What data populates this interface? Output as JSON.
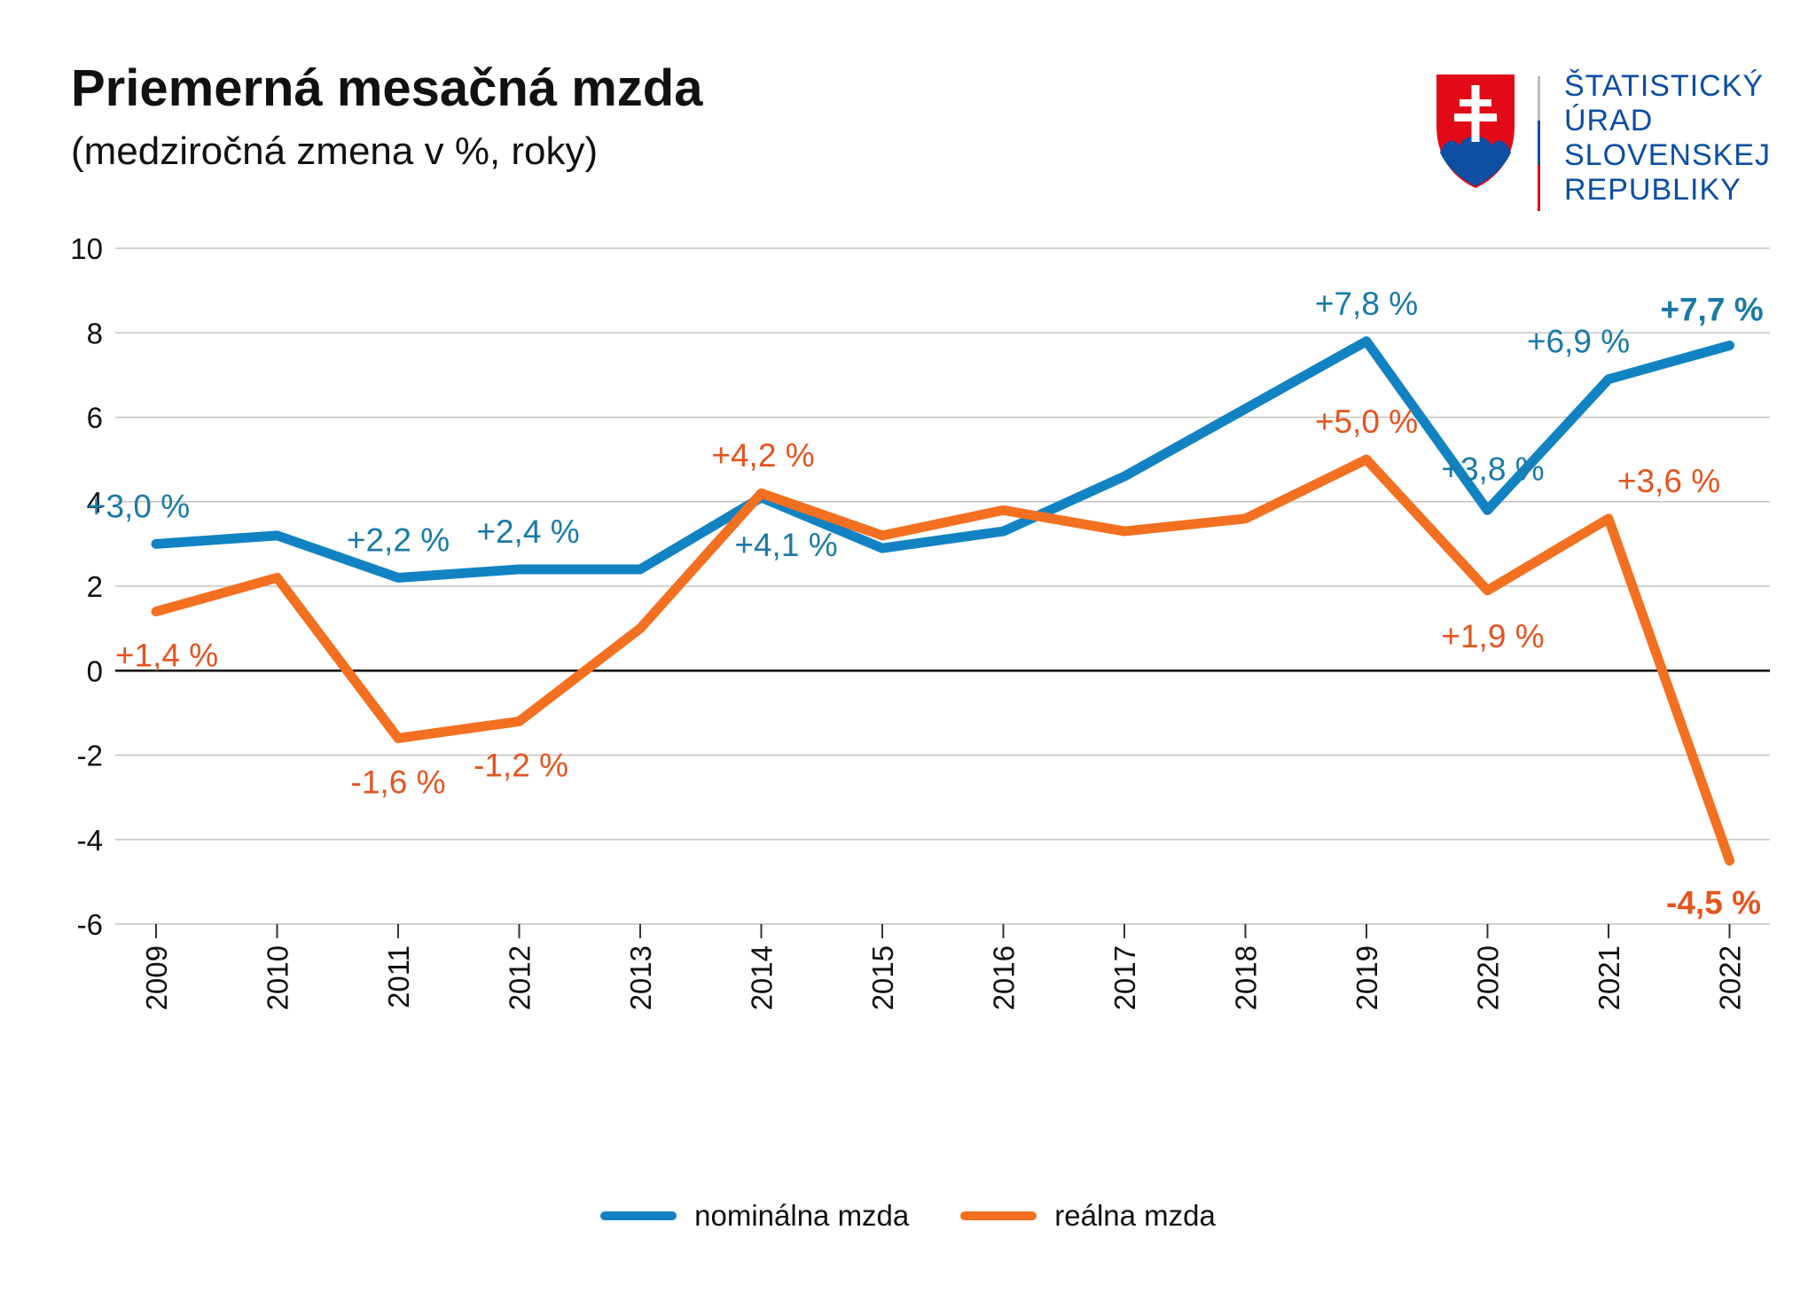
{
  "title": "Priemerná mesačná mzda",
  "subtitle": "(medziročná zmena v %, roky)",
  "logo": {
    "lines": [
      "ŠTATISTICKÝ",
      "ÚRAD",
      "SLOVENSKEJ",
      "REPUBLIKY"
    ],
    "text_color": "#0b4ea2"
  },
  "chart_data": {
    "type": "line",
    "x": [
      "2009",
      "2010",
      "2011",
      "2012",
      "2013",
      "2014",
      "2015",
      "2016",
      "2017",
      "2018",
      "2019",
      "2020",
      "2021",
      "2022"
    ],
    "ylim": [
      -6,
      10
    ],
    "yticks": [
      "10",
      "8",
      "6",
      "4",
      "2",
      "0",
      "-2",
      "-4",
      "-6"
    ],
    "grid": true,
    "legend_position": "bottom",
    "series": [
      {
        "name": "nominálna mzda",
        "color": "#1283c2",
        "label_color": "#1a7aa8",
        "values": [
          3.0,
          3.2,
          2.2,
          2.4,
          2.4,
          4.1,
          2.9,
          3.3,
          4.6,
          6.2,
          7.8,
          3.8,
          6.9,
          7.7
        ],
        "labels": [
          "+3,0 %",
          "",
          "+2,2 %",
          "+2,4 %",
          "",
          "+4,1 %",
          "",
          "",
          "",
          "",
          "+7,8 %",
          "+3,8 %",
          "+6,9 %",
          "+7,7 %"
        ]
      },
      {
        "name": "reálna mzda",
        "color": "#f37021",
        "label_color": "#e5541e",
        "values": [
          1.4,
          2.2,
          -1.6,
          -1.2,
          1.0,
          4.2,
          3.2,
          3.8,
          3.3,
          3.6,
          5.0,
          1.9,
          3.6,
          -4.5
        ],
        "labels": [
          "+1,4 %",
          "",
          "-1,6 %",
          "-1,2 %",
          "",
          "+4,2 %",
          "",
          "",
          "",
          "",
          "+5,0 %",
          "+1,9 %",
          "+3,6 %",
          "-4,5 %"
        ]
      }
    ]
  }
}
